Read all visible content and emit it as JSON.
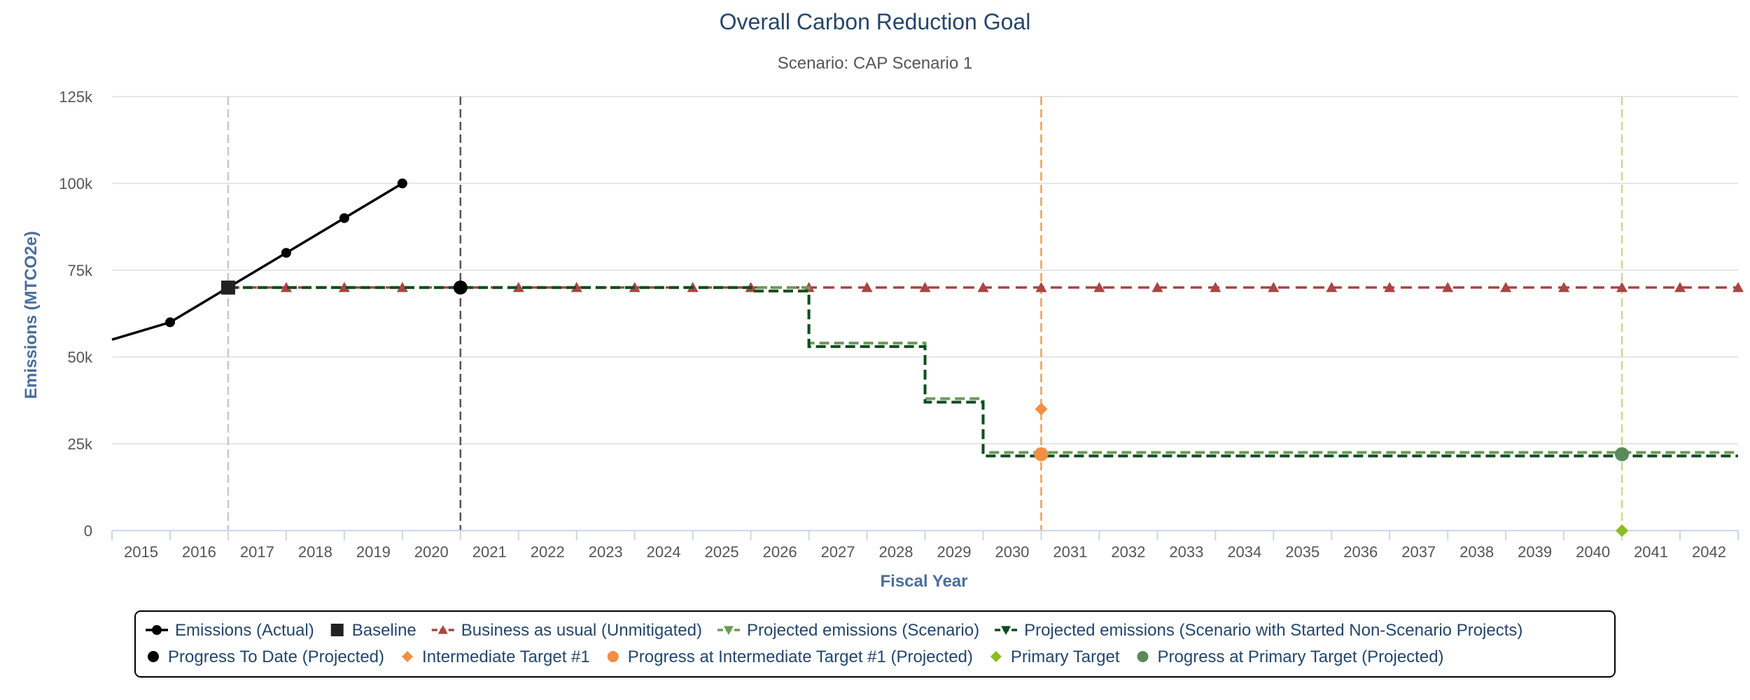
{
  "chart_data": {
    "type": "line",
    "title": "Overall Carbon Reduction Goal",
    "subtitle": "Scenario: CAP Scenario 1",
    "xlabel": "Fiscal Year",
    "ylabel": "Emissions (MTCO2e)",
    "ylim": [
      0,
      125000
    ],
    "yticks": [
      "0",
      "25k",
      "50k",
      "75k",
      "100k",
      "125k"
    ],
    "ytick_values": [
      0,
      25000,
      50000,
      75000,
      100000,
      125000
    ],
    "categories": [
      "2015",
      "2016",
      "2017",
      "2018",
      "2019",
      "2020",
      "2021",
      "2022",
      "2023",
      "2024",
      "2025",
      "2026",
      "2027",
      "2028",
      "2029",
      "2030",
      "2031",
      "2032",
      "2033",
      "2034",
      "2035",
      "2036",
      "2037",
      "2038",
      "2039",
      "2040",
      "2041",
      "2042"
    ],
    "grid": true,
    "legend_position": "bottom",
    "vertical_lines": [
      {
        "year": "2016",
        "color": "#c8c8c8"
      },
      {
        "year": "2020",
        "color": "#555555"
      },
      {
        "year": "2030",
        "color": "#f0a050"
      },
      {
        "year": "2040",
        "color": "#c8dc8c"
      }
    ],
    "series": [
      {
        "name": "Emissions (Actual)",
        "color": "#000000",
        "style": "solid",
        "marker": "circle",
        "points": [
          {
            "x": "2014",
            "y": 55000
          },
          {
            "x": "2015",
            "y": 60000
          },
          {
            "x": "2016",
            "y": 70000
          },
          {
            "x": "2017",
            "y": 80000
          },
          {
            "x": "2018",
            "y": 90000
          },
          {
            "x": "2019",
            "y": 100000
          }
        ]
      },
      {
        "name": "Baseline",
        "color": "#222222",
        "marker": "square",
        "points": [
          {
            "x": "2016",
            "y": 70000
          }
        ]
      },
      {
        "name": "Business as usual (Unmitigated)",
        "color": "#aa4643",
        "style": "dashed",
        "marker": "triangle",
        "points": [
          {
            "x": "2016",
            "y": 70000
          },
          {
            "x": "2017",
            "y": 70000
          },
          {
            "x": "2018",
            "y": 70000
          },
          {
            "x": "2019",
            "y": 70000
          },
          {
            "x": "2020",
            "y": 70000
          },
          {
            "x": "2021",
            "y": 70000
          },
          {
            "x": "2022",
            "y": 70000
          },
          {
            "x": "2023",
            "y": 70000
          },
          {
            "x": "2024",
            "y": 70000
          },
          {
            "x": "2025",
            "y": 70000
          },
          {
            "x": "2026",
            "y": 70000
          },
          {
            "x": "2027",
            "y": 70000
          },
          {
            "x": "2028",
            "y": 70000
          },
          {
            "x": "2029",
            "y": 70000
          },
          {
            "x": "2030",
            "y": 70000
          },
          {
            "x": "2031",
            "y": 70000
          },
          {
            "x": "2032",
            "y": 70000
          },
          {
            "x": "2033",
            "y": 70000
          },
          {
            "x": "2034",
            "y": 70000
          },
          {
            "x": "2035",
            "y": 70000
          },
          {
            "x": "2036",
            "y": 70000
          },
          {
            "x": "2037",
            "y": 70000
          },
          {
            "x": "2038",
            "y": 70000
          },
          {
            "x": "2039",
            "y": 70000
          },
          {
            "x": "2040",
            "y": 70000
          },
          {
            "x": "2041",
            "y": 70000
          },
          {
            "x": "2042",
            "y": 70000
          }
        ]
      },
      {
        "name": "Projected emissions (Scenario)",
        "color": "#6a9a5a",
        "style": "dashed-step",
        "marker": "triangle-down",
        "points": [
          {
            "x": "2016",
            "y": 70000
          },
          {
            "x": "2025",
            "y": 70000
          },
          {
            "x": "2026",
            "y": 54000
          },
          {
            "x": "2027",
            "y": 54000
          },
          {
            "x": "2028",
            "y": 38000
          },
          {
            "x": "2029",
            "y": 22500
          },
          {
            "x": "2042",
            "y": 22500
          }
        ]
      },
      {
        "name": "Projected emissions (Scenario with Started Non-Scenario Projects)",
        "color": "#0d4d1d",
        "style": "dashed-step",
        "marker": "triangle-down",
        "points": [
          {
            "x": "2016",
            "y": 70000
          },
          {
            "x": "2025",
            "y": 69000
          },
          {
            "x": "2026",
            "y": 53000
          },
          {
            "x": "2027",
            "y": 53000
          },
          {
            "x": "2028",
            "y": 37000
          },
          {
            "x": "2029",
            "y": 21500
          },
          {
            "x": "2042",
            "y": 21500
          }
        ]
      },
      {
        "name": "Progress To Date (Projected)",
        "color": "#000000",
        "marker": "circle",
        "points": [
          {
            "x": "2020",
            "y": 70000
          }
        ]
      },
      {
        "name": "Intermediate Target #1",
        "color": "#f28f43",
        "marker": "diamond",
        "points": [
          {
            "x": "2030",
            "y": 35000
          }
        ]
      },
      {
        "name": "Progress at Intermediate Target #1 (Projected)",
        "color": "#f28f43",
        "marker": "circle",
        "points": [
          {
            "x": "2030",
            "y": 22000
          }
        ]
      },
      {
        "name": "Primary Target",
        "color": "#8bbc21",
        "marker": "diamond",
        "points": [
          {
            "x": "2040",
            "y": 0
          }
        ]
      },
      {
        "name": "Progress at Primary Target (Projected)",
        "color": "#5a8a5a",
        "marker": "circle",
        "points": [
          {
            "x": "2040",
            "y": 22000
          }
        ]
      }
    ]
  }
}
